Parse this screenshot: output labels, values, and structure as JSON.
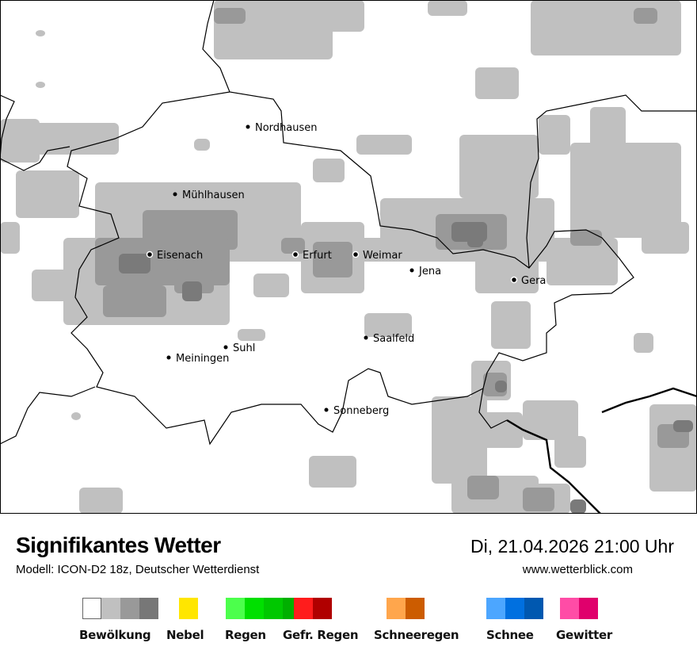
{
  "header": {
    "title": "Signifikantes Wetter",
    "subtitle": "Modell: ICON-D2 18z, Deutscher Wetterdienst",
    "datetime": "Di, 21.04.2026 21:00 Uhr",
    "website": "www.wetterblick.com"
  },
  "map": {
    "cities": [
      {
        "name": "Nordhausen"
      },
      {
        "name": "Mühlhausen"
      },
      {
        "name": "Eisenach"
      },
      {
        "name": "Erfurt"
      },
      {
        "name": "Weimar"
      },
      {
        "name": "Jena"
      },
      {
        "name": "Gera"
      },
      {
        "name": "Saalfeld"
      },
      {
        "name": "Suhl"
      },
      {
        "name": "Meiningen"
      },
      {
        "name": "Sonneberg"
      }
    ],
    "cloud_colors": {
      "light": "#c0c0c0",
      "medium": "#999999",
      "dark": "#7a7a7a"
    }
  },
  "legend": [
    {
      "label": "Bewölkung",
      "colors": [
        "#ffffff",
        "#c0c0c0",
        "#999999",
        "#777777"
      ]
    },
    {
      "label": "Nebel",
      "colors": [
        "#ffe600"
      ]
    },
    {
      "label": "Regen",
      "colors": [
        "#4cff4c",
        "#00e000",
        "#00c800",
        "#00b000"
      ]
    },
    {
      "label": "Gefr. Regen",
      "colors": [
        "#ff1c1c",
        "#b00000"
      ]
    },
    {
      "label": "Schneeregen",
      "colors": [
        "#ffa64c",
        "#cc5c00"
      ]
    },
    {
      "label": "Schnee",
      "colors": [
        "#4ca6ff",
        "#0070e0",
        "#0058b0"
      ]
    },
    {
      "label": "Gewitter",
      "colors": [
        "#ff4ca6",
        "#e0006c"
      ]
    }
  ]
}
